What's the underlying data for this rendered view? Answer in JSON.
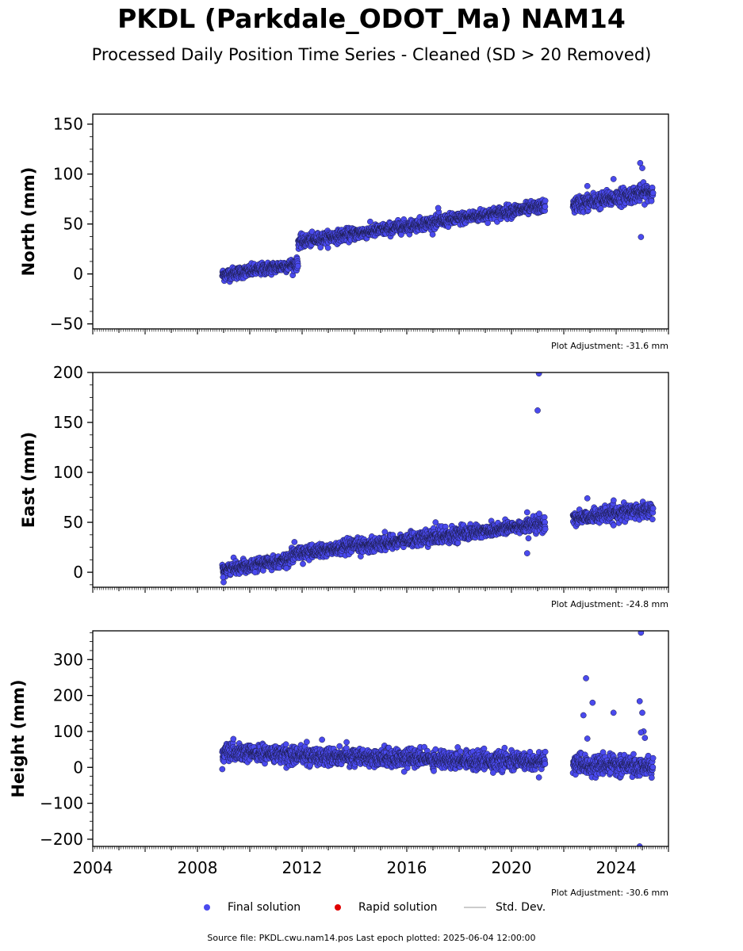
{
  "title": "PKDL (Parkdale_ODOT_Ma) NAM14",
  "subtitle": "Processed Daily Position Time Series - Cleaned (SD > 20 Removed)",
  "footer": "Source file: PKDL.cwu.nam14.pos  Last epoch plotted: 2025-06-04 12:00:00",
  "legend": {
    "final": "Final solution",
    "rapid": "Rapid solution",
    "std": "Std. Dev."
  },
  "colors": {
    "final": "#4a4aee",
    "rapid": "#e00000",
    "std": "#cccccc",
    "edge": "#1a1a44"
  },
  "chart_data": [
    {
      "type": "scatter",
      "ylabel": "North (mm)",
      "ylim": [
        -55,
        160
      ],
      "yticks": [
        -50,
        0,
        50,
        100,
        150
      ],
      "ytick_labels": [
        "−50",
        "0",
        "50",
        "100",
        "150"
      ],
      "xlim": [
        2004.0,
        2026.0
      ],
      "adjustment": "Plot Adjustment: -31.6 mm",
      "series": [
        {
          "segments": [
            {
              "x0": 2008.95,
              "x1": 2011.85,
              "y0": -1,
              "y1": 10,
              "spread": 3
            },
            {
              "x0": 2011.85,
              "x1": 2021.3,
              "y0": 32,
              "y1": 68,
              "spread": 3
            },
            {
              "x0": 2022.35,
              "x1": 2025.42,
              "y0": 69,
              "y1": 83,
              "spread": 4
            }
          ],
          "outliers": [
            [
              2024.92,
              111
            ],
            [
              2025.0,
              106
            ],
            [
              2024.95,
              37
            ],
            [
              2022.9,
              88
            ],
            [
              2023.9,
              95
            ],
            [
              2017.2,
              66
            ],
            [
              2025.35,
              73
            ]
          ]
        }
      ]
    },
    {
      "type": "scatter",
      "ylabel": "East (mm)",
      "ylim": [
        -15,
        200
      ],
      "yticks": [
        0,
        50,
        100,
        150,
        200
      ],
      "ytick_labels": [
        "0",
        "50",
        "100",
        "150",
        "200"
      ],
      "xlim": [
        2004.0,
        2026.0
      ],
      "adjustment": "Plot Adjustment: -24.8 mm",
      "series": [
        {
          "segments": [
            {
              "x0": 2008.95,
              "x1": 2011.6,
              "y0": 3,
              "y1": 13,
              "spread": 3
            },
            {
              "x0": 2011.6,
              "x1": 2021.3,
              "y0": 18,
              "y1": 49,
              "spread": 3.5
            },
            {
              "x0": 2022.35,
              "x1": 2025.42,
              "y0": 54,
              "y1": 63,
              "spread": 3.5
            }
          ],
          "outliers": [
            [
              2021.05,
              199
            ],
            [
              2021.0,
              162
            ],
            [
              2020.6,
              19
            ],
            [
              2020.65,
              34
            ],
            [
              2020.6,
              60
            ],
            [
              2009.0,
              -10
            ],
            [
              2008.98,
              -5
            ],
            [
              2011.4,
              4
            ],
            [
              2010.2,
              0
            ],
            [
              2017.1,
              50
            ],
            [
              2022.9,
              74
            ],
            [
              2023.9,
              47
            ]
          ]
        }
      ]
    },
    {
      "type": "scatter",
      "ylabel": "Height (mm)",
      "ylim": [
        -220,
        380
      ],
      "yticks": [
        -200,
        -100,
        0,
        100,
        200,
        300
      ],
      "ytick_labels": [
        "−200",
        "−100",
        "0",
        "100",
        "200",
        "300"
      ],
      "xlim": [
        2004.0,
        2026.0
      ],
      "xticks": [
        2004,
        2008,
        2012,
        2016,
        2020,
        2024
      ],
      "xtick_labels": [
        "2004",
        "2008",
        "2012",
        "2016",
        "2020",
        "2024"
      ],
      "adjustment": "Plot Adjustment: -30.6 mm",
      "series": [
        {
          "segments": [
            {
              "x0": 2008.95,
              "x1": 2012.0,
              "y0": 40,
              "y1": 35,
              "spread": 12
            },
            {
              "x0": 2012.0,
              "x1": 2021.3,
              "y0": 33,
              "y1": 15,
              "spread": 12
            },
            {
              "x0": 2022.35,
              "x1": 2025.42,
              "y0": 8,
              "y1": 2,
              "spread": 12
            }
          ],
          "outliers": [
            [
              2024.95,
              375
            ],
            [
              2024.9,
              -220
            ],
            [
              2022.85,
              248
            ],
            [
              2023.1,
              180
            ],
            [
              2023.9,
              152
            ],
            [
              2024.9,
              184
            ],
            [
              2025.0,
              152
            ],
            [
              2022.75,
              145
            ],
            [
              2023.5,
              42
            ],
            [
              2025.05,
              100
            ],
            [
              2024.95,
              97
            ],
            [
              2022.9,
              80
            ],
            [
              2025.1,
              82
            ],
            [
              2021.05,
              -28
            ],
            [
              2015.9,
              -12
            ],
            [
              2019.3,
              -15
            ],
            [
              2008.95,
              -5
            ],
            [
              2013.7,
              70
            ]
          ]
        }
      ]
    }
  ]
}
